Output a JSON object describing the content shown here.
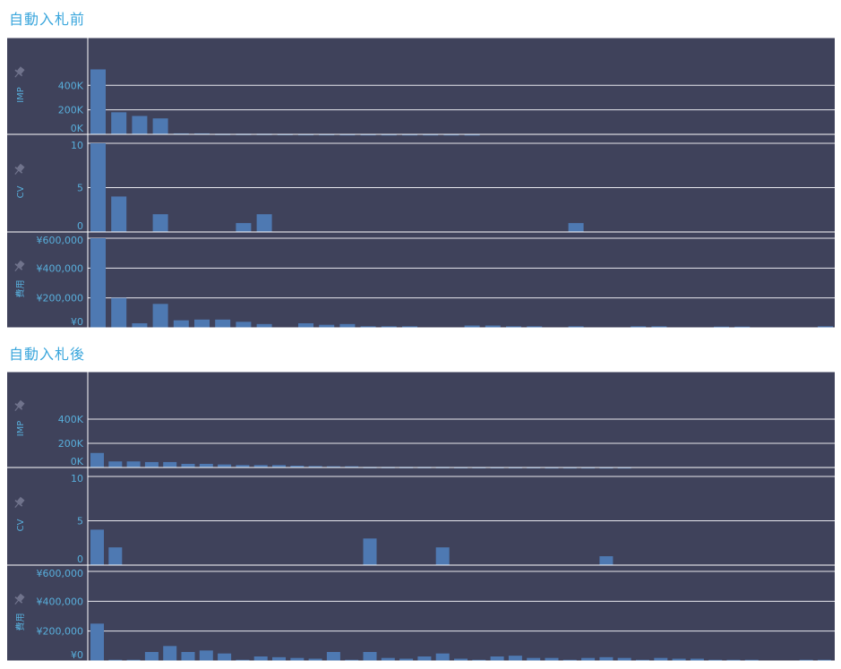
{
  "colors": {
    "panel_bg": "#3f425b",
    "bar": "#4e79b2",
    "grid": "#e8e8ee",
    "text": "#58aedb",
    "pin": "#70738c",
    "title": "#3aa6dc"
  },
  "sections": [
    {
      "title": "自動入札前"
    },
    {
      "title": "自動入札後"
    }
  ],
  "chart_data": [
    {
      "type": "bar",
      "title": "自動入札前",
      "categories_count": 36,
      "panels": [
        {
          "ylabel": "IMP",
          "ylim": [
            0,
            570000
          ],
          "ticks": [
            0,
            200000,
            400000
          ],
          "tick_labels": [
            "0K",
            "200K",
            "400K"
          ],
          "values": [
            530000,
            180000,
            150000,
            130000,
            8000,
            8000,
            5000,
            5000,
            5000,
            4000,
            3000,
            3000,
            2500,
            2500,
            2000,
            2000,
            2000,
            2000,
            1500,
            0,
            0,
            0,
            0,
            0,
            0,
            0,
            0,
            0,
            0,
            0,
            0,
            0,
            0,
            0,
            0,
            0
          ]
        },
        {
          "ylabel": "CV",
          "ylim": [
            0,
            10
          ],
          "ticks": [
            0,
            5,
            10
          ],
          "tick_labels": [
            "0",
            "5",
            "10"
          ],
          "values": [
            10,
            4,
            0,
            2,
            0,
            0,
            0,
            1,
            2,
            0,
            0,
            0,
            0,
            0,
            0,
            0,
            0,
            0,
            0,
            0,
            0,
            0,
            0,
            1,
            0,
            0,
            0,
            0,
            0,
            0,
            0,
            0,
            0,
            0,
            0,
            0
          ]
        },
        {
          "ylabel": "費用",
          "ylim": [
            0,
            600000
          ],
          "ticks": [
            0,
            200000,
            400000,
            600000
          ],
          "tick_labels": [
            "¥0",
            "¥200,000",
            "¥400,000",
            "¥600,000"
          ],
          "values": [
            600000,
            200000,
            30000,
            160000,
            50000,
            55000,
            55000,
            40000,
            25000,
            0,
            30000,
            20000,
            25000,
            10000,
            10000,
            10000,
            0,
            0,
            15000,
            15000,
            10000,
            10000,
            0,
            10000,
            0,
            0,
            10000,
            10000,
            0,
            0,
            8000,
            8000,
            0,
            0,
            0,
            10000
          ]
        }
      ]
    },
    {
      "type": "bar",
      "title": "自動入札後",
      "categories_count": 41,
      "panels": [
        {
          "ylabel": "IMP",
          "ylim": [
            0,
            570000
          ],
          "ticks": [
            0,
            200000,
            400000
          ],
          "tick_labels": [
            "0K",
            "200K",
            "400K"
          ],
          "values": [
            120000,
            50000,
            50000,
            45000,
            45000,
            30000,
            30000,
            25000,
            20000,
            20000,
            20000,
            15000,
            12000,
            10000,
            10000,
            5000,
            5000,
            5000,
            5000,
            5000,
            4000,
            4000,
            4000,
            4000,
            4000,
            3000,
            3000,
            3000,
            3000,
            3000,
            0,
            0,
            0,
            0,
            0,
            0,
            0,
            0,
            0,
            0,
            0
          ]
        },
        {
          "ylabel": "CV",
          "ylim": [
            0,
            10
          ],
          "ticks": [
            0,
            5,
            10
          ],
          "tick_labels": [
            "0",
            "5",
            "10"
          ],
          "values": [
            4,
            2,
            0,
            0,
            0,
            0,
            0,
            0,
            0,
            0,
            0,
            0,
            0,
            0,
            0,
            3,
            0,
            0,
            0,
            2,
            0,
            0,
            0,
            0,
            0,
            0,
            0,
            0,
            1,
            0,
            0,
            0,
            0,
            0,
            0,
            0,
            0,
            0,
            0,
            0,
            0
          ]
        },
        {
          "ylabel": "費用",
          "ylim": [
            0,
            600000
          ],
          "ticks": [
            0,
            200000,
            400000,
            600000
          ],
          "tick_labels": [
            "¥0",
            "¥200,000",
            "¥400,000",
            "¥600,000"
          ],
          "values": [
            250000,
            8000,
            8000,
            60000,
            100000,
            60000,
            70000,
            50000,
            8000,
            30000,
            25000,
            20000,
            15000,
            60000,
            8000,
            60000,
            20000,
            15000,
            30000,
            50000,
            15000,
            8000,
            30000,
            35000,
            20000,
            20000,
            8000,
            20000,
            25000,
            20000,
            8000,
            20000,
            15000,
            15000,
            8000,
            8000,
            8000,
            0,
            0,
            8000,
            8000
          ]
        }
      ]
    }
  ]
}
